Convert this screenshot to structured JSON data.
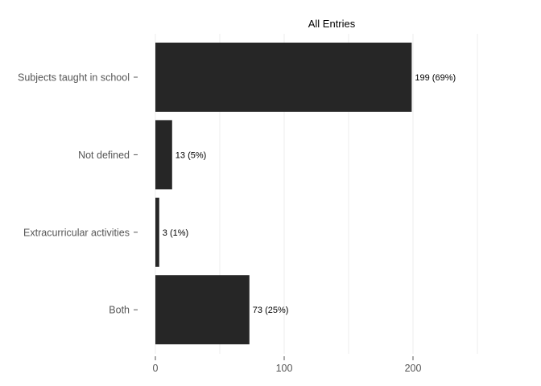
{
  "chart_data": {
    "type": "bar",
    "orientation": "horizontal",
    "title": "All Entries",
    "categories": [
      "Subjects taught in school",
      "Not defined",
      "Extracurricular activities",
      "Both"
    ],
    "values": [
      199,
      13,
      3,
      73
    ],
    "data_labels": [
      "199 (69%)",
      "13 (5%)",
      "3 (1%)",
      "73 (25%)"
    ],
    "xlim": [
      0,
      250
    ],
    "x_ticks": [
      0,
      100,
      200
    ],
    "x_tick_labels": [
      "0",
      "100",
      "200"
    ],
    "minor_gridlines": [
      50,
      150,
      250
    ],
    "grid": true,
    "bar_color": "#262626",
    "xlabel": "",
    "ylabel": ""
  }
}
